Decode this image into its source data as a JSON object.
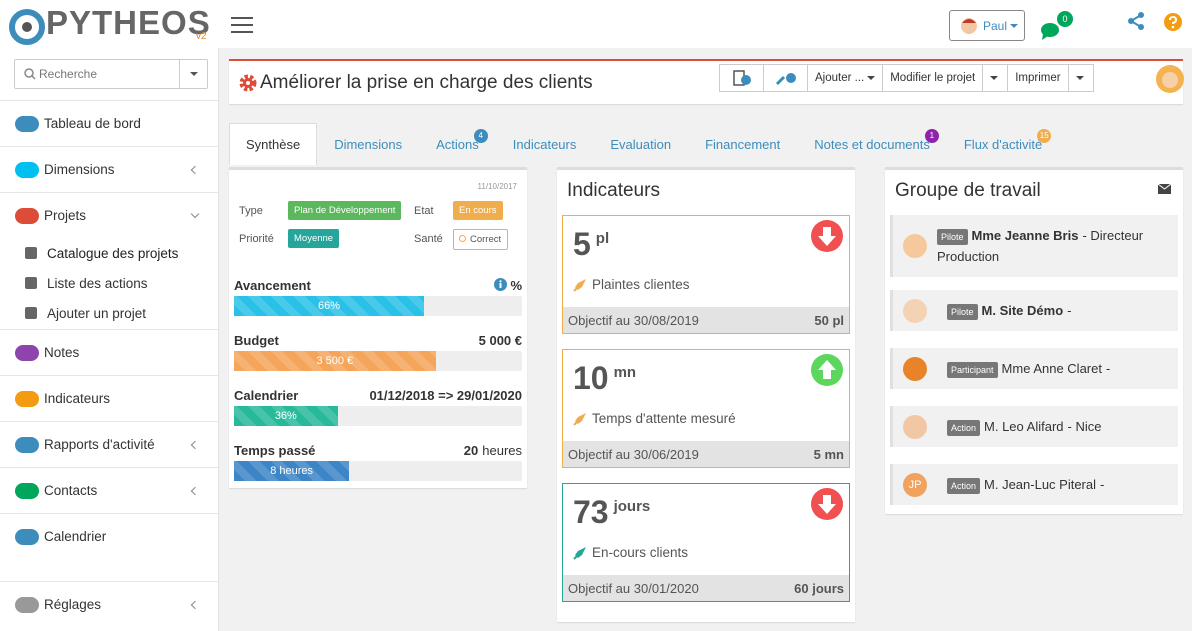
{
  "header": {
    "logo": "PYTHEOS",
    "version": "v2",
    "user": "Paul",
    "messages": 0
  },
  "sidebar": {
    "search": "Recherche",
    "menu": [
      {
        "label": "Tableau de bord",
        "color": "#3c8dbc"
      },
      {
        "label": "Dimensions",
        "color": "#00c0ef",
        "chevron": "left"
      },
      {
        "label": "Projets",
        "color": "#dd4b39",
        "chevron": "down"
      },
      {
        "label": "Catalogue des projets",
        "sub": true
      },
      {
        "label": "Liste des actions",
        "sub": true
      },
      {
        "label": "Ajouter un projet",
        "sub": true
      },
      {
        "label": "Notes",
        "color": "#8e44ad"
      },
      {
        "label": "Indicateurs",
        "color": "#f39c12"
      },
      {
        "label": "Rapports d'activité",
        "color": "#3c8dbc",
        "chevron": "left"
      },
      {
        "label": "Contacts",
        "color": "#00a65a",
        "chevron": "left"
      },
      {
        "label": "Calendrier",
        "color": "#3c8dbc"
      },
      {
        "label": "Réglages",
        "color": "#999999",
        "chevron": "left"
      }
    ]
  },
  "project": {
    "title": "Améliorer la prise en charge des clients",
    "actions": [
      "Ajouter ...",
      "Modifier le projet",
      "Imprimer"
    ]
  },
  "tabs": [
    {
      "label": "Synthèse"
    },
    {
      "label": "Dimensions"
    },
    {
      "label": "Actions",
      "badge": 4,
      "badge_color": "#3c8dbc"
    },
    {
      "label": "Indicateurs"
    },
    {
      "label": "Evaluation"
    },
    {
      "label": "Financement"
    },
    {
      "label": "Notes et documents",
      "badge": 1,
      "badge_color": "#8e24aa"
    },
    {
      "label": "Flux d'activité",
      "badge": 15,
      "badge_color": "#f0ad4e"
    }
  ],
  "synthese": {
    "date": "11/10/2017",
    "fields": [
      {
        "label": "Type",
        "value": "Plan de Développement",
        "color": "#5cb85c"
      },
      {
        "label": "Etat",
        "value": "En cours",
        "color": "#f0ad4e"
      },
      {
        "label": "Priorité",
        "value": "Moyenne",
        "color": "#26a69a"
      },
      {
        "label": "Santé",
        "value": "Correct",
        "color": "#ffffff"
      }
    ],
    "avancement": {
      "label": "Avancement",
      "unit": "%",
      "value": 66,
      "value_label": "66%"
    },
    "budget": {
      "label": "Budget",
      "total": 5000,
      "total_label": "5 000 €",
      "spent": 3500,
      "spent_label": "3 500 €"
    },
    "calendrier": {
      "label": "Calendrier",
      "period": "01/12/2018 => 29/01/2020",
      "value": 36,
      "value_label": "36%"
    },
    "temps": {
      "label": "Temps passé",
      "total": 20,
      "unit": "heures",
      "spent": 8,
      "spent_label": "8 heures"
    }
  },
  "indicateurs": {
    "title": "Indicateurs",
    "items": [
      {
        "value": 5,
        "unit": "pl",
        "name": "Plaintes clientes",
        "target_label": "Objectif au 30/08/2019",
        "target": "50 pl",
        "trend": "down",
        "color": "#f0ad4e"
      },
      {
        "value": 10,
        "unit": "mn",
        "name": "Temps d'attente mesuré",
        "target_label": "Objectif au 30/06/2019",
        "target": "5 mn",
        "trend": "up",
        "color": "#f0ad4e"
      },
      {
        "value": 73,
        "unit": "jours",
        "name": "En-cours clients",
        "target_label": "Objectif au 30/01/2020",
        "target": "60 jours",
        "trend": "down",
        "color": "#26a69a"
      }
    ]
  },
  "groupe": {
    "title": "Groupe de travail",
    "members": [
      {
        "role": "Pilote",
        "name": "Mme Jeanne Bris",
        "detail": "- Directeur Production",
        "bold": true,
        "avatar": "#f5c99b"
      },
      {
        "role": "Pilote",
        "name": "M. Site Démo",
        "detail": "-",
        "bold": true,
        "avatar": "#f4d3b5"
      },
      {
        "role": "Participant",
        "name": "Mme Anne Claret",
        "detail": "-",
        "avatar": "#e8832a"
      },
      {
        "role": "Action",
        "name": "M. Leo Alifard",
        "detail": "- Nice",
        "avatar": "#f1c7a4"
      },
      {
        "role": "Action",
        "name": "M. Jean-Luc Piteral",
        "detail": "-",
        "avatar": "#f0a35e",
        "initials": "JP"
      }
    ]
  }
}
